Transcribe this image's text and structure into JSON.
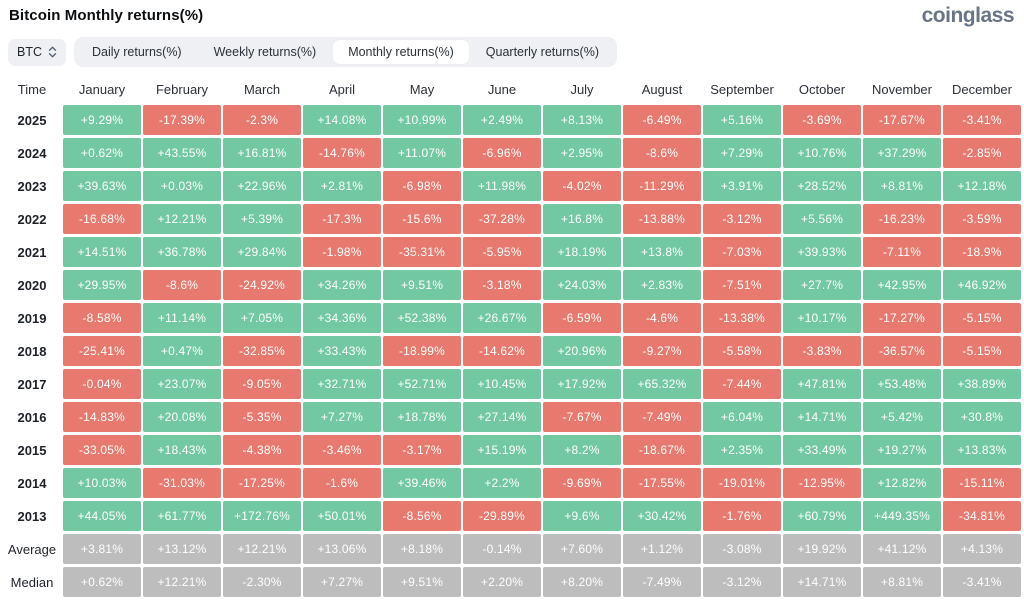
{
  "header": {
    "title": "Bitcoin Monthly returns(%)",
    "logo_text": "coinglass"
  },
  "controls": {
    "coin_selector": {
      "value": "BTC",
      "icon": "updown-chevron-icon"
    },
    "tabs": [
      {
        "label": "Daily returns(%)",
        "active": false
      },
      {
        "label": "Weekly returns(%)",
        "active": false
      },
      {
        "label": "Monthly returns(%)",
        "active": true
      },
      {
        "label": "Quarterly returns(%)",
        "active": false
      }
    ]
  },
  "table": {
    "columns": [
      "Time",
      "January",
      "February",
      "March",
      "April",
      "May",
      "June",
      "July",
      "August",
      "September",
      "October",
      "November",
      "December"
    ],
    "rows": [
      {
        "label": "2025",
        "kind": "year",
        "values": [
          "+9.29%",
          "-17.39%",
          "-2.3%",
          "+14.08%",
          "+10.99%",
          "+2.49%",
          "+8.13%",
          "-6.49%",
          "+5.16%",
          "-3.69%",
          "-17.67%",
          "-3.41%"
        ]
      },
      {
        "label": "2024",
        "kind": "year",
        "values": [
          "+0.62%",
          "+43.55%",
          "+16.81%",
          "-14.76%",
          "+11.07%",
          "-6.96%",
          "+2.95%",
          "-8.6%",
          "+7.29%",
          "+10.76%",
          "+37.29%",
          "-2.85%"
        ]
      },
      {
        "label": "2023",
        "kind": "year",
        "values": [
          "+39.63%",
          "+0.03%",
          "+22.96%",
          "+2.81%",
          "-6.98%",
          "+11.98%",
          "-4.02%",
          "-11.29%",
          "+3.91%",
          "+28.52%",
          "+8.81%",
          "+12.18%"
        ]
      },
      {
        "label": "2022",
        "kind": "year",
        "values": [
          "-16.68%",
          "+12.21%",
          "+5.39%",
          "-17.3%",
          "-15.6%",
          "-37.28%",
          "+16.8%",
          "-13.88%",
          "-3.12%",
          "+5.56%",
          "-16.23%",
          "-3.59%"
        ]
      },
      {
        "label": "2021",
        "kind": "year",
        "values": [
          "+14.51%",
          "+36.78%",
          "+29.84%",
          "-1.98%",
          "-35.31%",
          "-5.95%",
          "+18.19%",
          "+13.8%",
          "-7.03%",
          "+39.93%",
          "-7.11%",
          "-18.9%"
        ]
      },
      {
        "label": "2020",
        "kind": "year",
        "values": [
          "+29.95%",
          "-8.6%",
          "-24.92%",
          "+34.26%",
          "+9.51%",
          "-3.18%",
          "+24.03%",
          "+2.83%",
          "-7.51%",
          "+27.7%",
          "+42.95%",
          "+46.92%"
        ]
      },
      {
        "label": "2019",
        "kind": "year",
        "values": [
          "-8.58%",
          "+11.14%",
          "+7.05%",
          "+34.36%",
          "+52.38%",
          "+26.67%",
          "-6.59%",
          "-4.6%",
          "-13.38%",
          "+10.17%",
          "-17.27%",
          "-5.15%"
        ]
      },
      {
        "label": "2018",
        "kind": "year",
        "values": [
          "-25.41%",
          "+0.47%",
          "-32.85%",
          "+33.43%",
          "-18.99%",
          "-14.62%",
          "+20.96%",
          "-9.27%",
          "-5.58%",
          "-3.83%",
          "-36.57%",
          "-5.15%"
        ]
      },
      {
        "label": "2017",
        "kind": "year",
        "values": [
          "-0.04%",
          "+23.07%",
          "-9.05%",
          "+32.71%",
          "+52.71%",
          "+10.45%",
          "+17.92%",
          "+65.32%",
          "-7.44%",
          "+47.81%",
          "+53.48%",
          "+38.89%"
        ]
      },
      {
        "label": "2016",
        "kind": "year",
        "values": [
          "-14.83%",
          "+20.08%",
          "-5.35%",
          "+7.27%",
          "+18.78%",
          "+27.14%",
          "-7.67%",
          "-7.49%",
          "+6.04%",
          "+14.71%",
          "+5.42%",
          "+30.8%"
        ]
      },
      {
        "label": "2015",
        "kind": "year",
        "values": [
          "-33.05%",
          "+18.43%",
          "-4.38%",
          "-3.46%",
          "-3.17%",
          "+15.19%",
          "+8.2%",
          "-18.67%",
          "+2.35%",
          "+33.49%",
          "+19.27%",
          "+13.83%"
        ]
      },
      {
        "label": "2014",
        "kind": "year",
        "values": [
          "+10.03%",
          "-31.03%",
          "-17.25%",
          "-1.6%",
          "+39.46%",
          "+2.2%",
          "-9.69%",
          "-17.55%",
          "-19.01%",
          "-12.95%",
          "+12.82%",
          "-15.11%"
        ]
      },
      {
        "label": "2013",
        "kind": "year",
        "values": [
          "+44.05%",
          "+61.77%",
          "+172.76%",
          "+50.01%",
          "-8.56%",
          "-29.89%",
          "+9.6%",
          "+30.42%",
          "-1.76%",
          "+60.79%",
          "+449.35%",
          "-34.81%"
        ]
      },
      {
        "label": "Average",
        "kind": "summary",
        "values": [
          "+3.81%",
          "+13.12%",
          "+12.21%",
          "+13.06%",
          "+8.18%",
          "-0.14%",
          "+7.60%",
          "+1.12%",
          "-3.08%",
          "+19.92%",
          "+41.12%",
          "+4.13%"
        ]
      },
      {
        "label": "Median",
        "kind": "summary",
        "values": [
          "+0.62%",
          "+12.21%",
          "-2.30%",
          "+7.27%",
          "+9.51%",
          "+2.20%",
          "+8.20%",
          "-7.49%",
          "-3.12%",
          "+14.71%",
          "+8.81%",
          "-3.41%"
        ]
      }
    ]
  },
  "colors": {
    "positive_cell": "#72c8a0",
    "negative_cell": "#e8796e",
    "summary_cell": "#bdbdbd",
    "cell_text": "#ffffff",
    "tab_bar_bg": "#eef0f3",
    "active_tab_bg": "#ffffff",
    "logo_gray": "#697586"
  }
}
